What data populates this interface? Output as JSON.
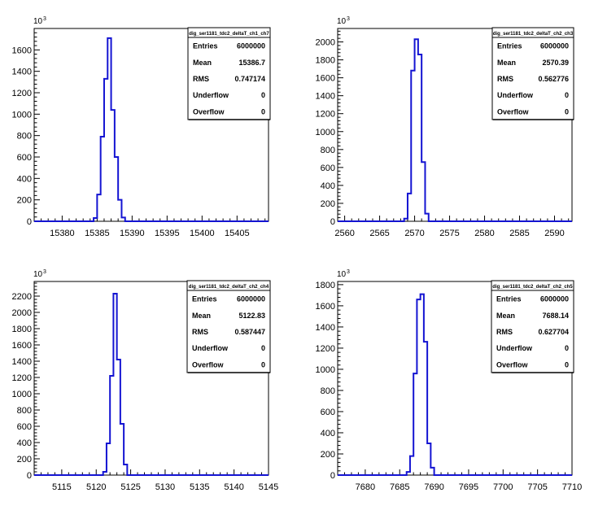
{
  "chart_data": [
    {
      "type": "bar",
      "stat_title": "dig_ser1181_tdc2_deltaT_ch1_ch7",
      "xlim": [
        15376,
        15409.5
      ],
      "ylim": [
        0,
        1800
      ],
      "xticks": [
        15380,
        15385,
        15390,
        15395,
        15400,
        15405
      ],
      "yticks": [
        0,
        200,
        400,
        600,
        800,
        1000,
        1200,
        1400,
        1600
      ],
      "y_multiplier_base": "10",
      "y_multiplier_exp": "3",
      "bin_width": 0.5,
      "series": [
        {
          "x_lo": [
            15384.5,
            15385,
            15385.5,
            15386,
            15386.5,
            15387,
            15387.5,
            15388,
            15388.5
          ],
          "values": [
            30,
            250,
            790,
            1330,
            1710,
            1040,
            600,
            200,
            35
          ]
        }
      ],
      "stats": [
        {
          "label": "Entries",
          "value": "6000000"
        },
        {
          "label": "Mean",
          "value": "15386.7"
        },
        {
          "label": "RMS",
          "value": "0.747174"
        },
        {
          "label": "Underflow",
          "value": "0"
        },
        {
          "label": "Overflow",
          "value": "0"
        }
      ]
    },
    {
      "type": "bar",
      "stat_title": "dig_ser1181_tdc2_deltaT_ch2_ch3",
      "xlim": [
        2559,
        2592.5
      ],
      "ylim": [
        0,
        2150
      ],
      "xticks": [
        2560,
        2565,
        2570,
        2575,
        2580,
        2585,
        2590
      ],
      "yticks": [
        0,
        200,
        400,
        600,
        800,
        1000,
        1200,
        1400,
        1600,
        1800,
        2000
      ],
      "y_multiplier_base": "10",
      "y_multiplier_exp": "3",
      "bin_width": 0.5,
      "series": [
        {
          "x_lo": [
            2568.5,
            2569,
            2569.5,
            2570,
            2570.5,
            2571,
            2571.5
          ],
          "values": [
            30,
            310,
            1680,
            2030,
            1860,
            660,
            85
          ]
        }
      ],
      "stats": [
        {
          "label": "Entries",
          "value": "6000000"
        },
        {
          "label": "Mean",
          "value": "2570.39"
        },
        {
          "label": "RMS",
          "value": "0.562776"
        },
        {
          "label": "Underflow",
          "value": "0"
        },
        {
          "label": "Overflow",
          "value": "0"
        }
      ]
    },
    {
      "type": "bar",
      "stat_title": "dig_ser1181_tdc2_deltaT_ch2_ch4",
      "xlim": [
        5111,
        5145
      ],
      "ylim": [
        0,
        2380
      ],
      "xticks": [
        5115,
        5120,
        5125,
        5130,
        5135,
        5140,
        5145
      ],
      "yticks": [
        0,
        200,
        400,
        600,
        800,
        1000,
        1200,
        1400,
        1600,
        1800,
        2000,
        2200
      ],
      "y_multiplier_base": "10",
      "y_multiplier_exp": "3",
      "bin_width": 0.5,
      "series": [
        {
          "x_lo": [
            5121,
            5121.5,
            5122,
            5122.5,
            5123,
            5123.5,
            5124
          ],
          "values": [
            40,
            390,
            1220,
            2230,
            1420,
            630,
            130
          ]
        }
      ],
      "stats": [
        {
          "label": "Entries",
          "value": "6000000"
        },
        {
          "label": "Mean",
          "value": "5122.83"
        },
        {
          "label": "RMS",
          "value": "0.587447"
        },
        {
          "label": "Underflow",
          "value": "0"
        },
        {
          "label": "Overflow",
          "value": "0"
        }
      ]
    },
    {
      "type": "bar",
      "stat_title": "dig_ser1181_tdc2_deltaT_ch2_ch5",
      "xlim": [
        7676,
        7710
      ],
      "ylim": [
        0,
        1830
      ],
      "xticks": [
        7680,
        7685,
        7690,
        7695,
        7700,
        7705,
        7710
      ],
      "yticks": [
        0,
        200,
        400,
        600,
        800,
        1000,
        1200,
        1400,
        1600,
        1800
      ],
      "y_multiplier_base": "10",
      "y_multiplier_exp": "3",
      "bin_width": 0.5,
      "series": [
        {
          "x_lo": [
            7686,
            7686.5,
            7687,
            7687.5,
            7688,
            7688.5,
            7689,
            7689.5
          ],
          "values": [
            30,
            180,
            960,
            1660,
            1710,
            1260,
            300,
            70
          ]
        }
      ],
      "stats": [
        {
          "label": "Entries",
          "value": "6000000"
        },
        {
          "label": "Mean",
          "value": "7688.14"
        },
        {
          "label": "RMS",
          "value": "0.627704"
        },
        {
          "label": "Underflow",
          "value": "0"
        },
        {
          "label": "Overflow",
          "value": "0"
        }
      ]
    }
  ],
  "colors": {
    "histogram_line": "#1414d2",
    "axis": "#000000",
    "background": "#ffffff"
  }
}
